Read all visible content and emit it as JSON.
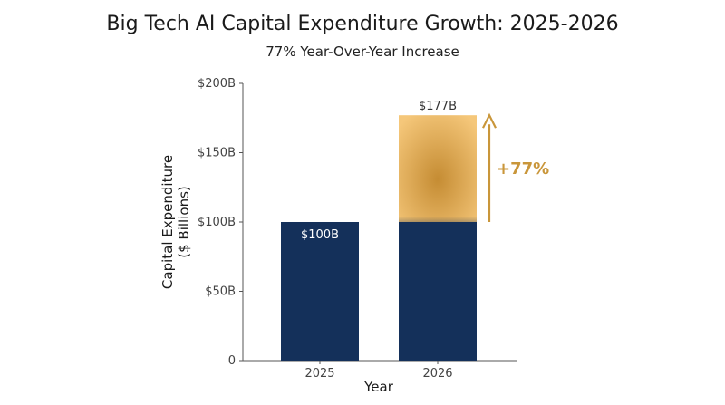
{
  "chart_data": {
    "type": "bar",
    "title": "Big Tech AI Capital Expenditure Growth: 2025-2026",
    "subtitle": "77% Year-Over-Year Increase",
    "xlabel": "Year",
    "ylabel_line1": "Capital Expenditure",
    "ylabel_line2": "($ Billions)",
    "categories": [
      "2025",
      "2026"
    ],
    "values": [
      100,
      177
    ],
    "value_labels": [
      "$100B",
      "$177B"
    ],
    "increase_segment": {
      "category": "2026",
      "from": 100,
      "to": 177
    },
    "annotation": "+77%",
    "ylim": [
      0,
      200
    ],
    "yticks": [
      0,
      50,
      100,
      150,
      200
    ],
    "ytick_labels": [
      "0",
      "$50B",
      "$100B",
      "$150B",
      "$200B"
    ],
    "grid": false,
    "colors": {
      "base": "#14305a",
      "increase_light": "#f3c476",
      "increase_dark": "#c9953b",
      "arrow": "#c9963a"
    }
  }
}
